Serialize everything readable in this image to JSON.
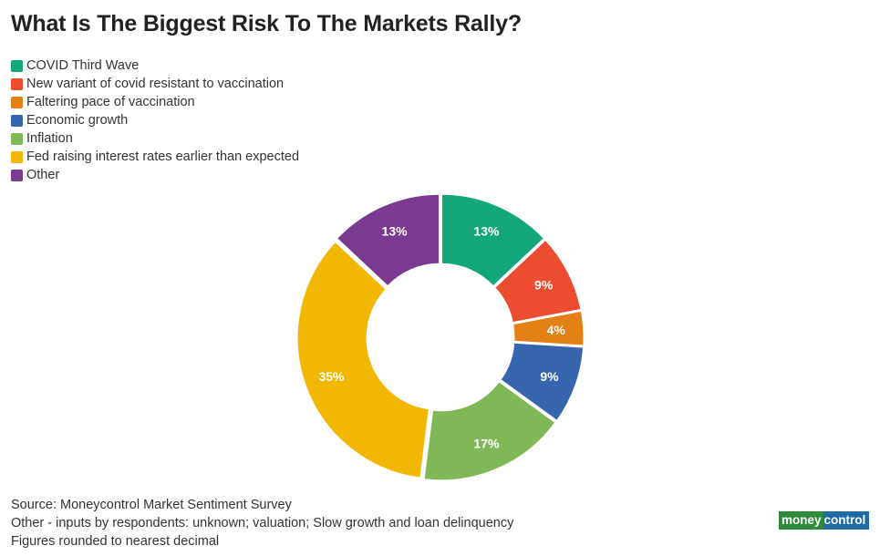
{
  "title": "What Is The Biggest Risk To The Markets Rally?",
  "chart_data": {
    "type": "pie",
    "title": "What Is The Biggest Risk To The Markets Rally?",
    "unit": "%",
    "donut": true,
    "legend_position": "top-left",
    "categories": [
      "COVID Third Wave",
      "New variant of covid resistant to vaccination",
      "Faltering pace of vaccination",
      "Economic growth",
      "Inflation",
      "Fed raising interest rates earlier than expected",
      "Other"
    ],
    "values": [
      13,
      9,
      4,
      9,
      17,
      35,
      13
    ],
    "labels": [
      "13%",
      "9%",
      "4%",
      "9%",
      "17%",
      "35%",
      "13%"
    ],
    "colors": [
      "#13a67a",
      "#ec4c2f",
      "#e38016",
      "#3665ad",
      "#80b857",
      "#f2b702",
      "#7a3a8f"
    ]
  },
  "notes": {
    "source": "Source: Moneycontrol Market Sentiment Survey",
    "other": "Other - inputs by respondents: unknown; valuation; Slow growth and loan delinquency",
    "rounding": "Figures rounded to nearest decimal"
  },
  "logo": {
    "part1": "money",
    "part2": "control"
  }
}
